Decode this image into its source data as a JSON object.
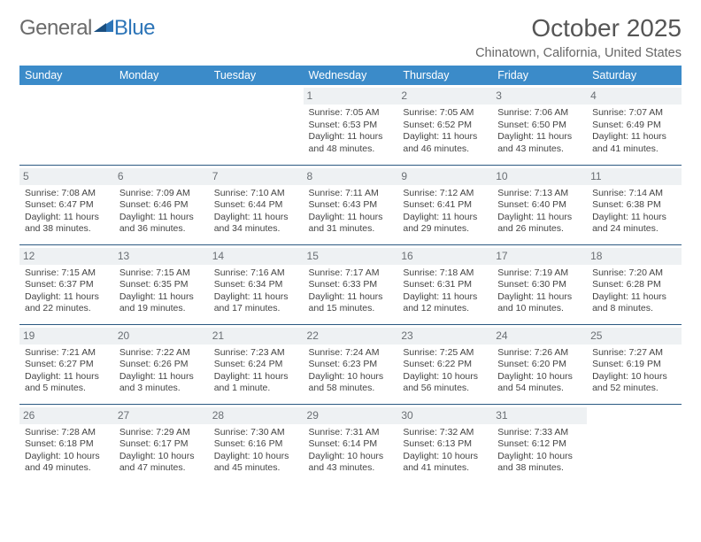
{
  "logo": {
    "text1": "General",
    "text2": "Blue"
  },
  "title": "October 2025",
  "subtitle": "Chinatown, California, United States",
  "colors": {
    "header_bg": "#3b8bc9",
    "header_fg": "#ffffff",
    "row_border": "#2c5a82",
    "daynum_bg": "#eef1f3",
    "daynum_fg": "#6a6f74",
    "logo_gray": "#6b6b6b",
    "logo_blue": "#2d75b8",
    "title_color": "#555555",
    "subtitle_color": "#666666",
    "body_text": "#444444",
    "page_bg": "#ffffff"
  },
  "typography": {
    "title_size_pt": 21,
    "subtitle_size_pt": 11,
    "header_size_pt": 9.5,
    "cell_size_pt": 8,
    "daynum_size_pt": 9
  },
  "dayHeaders": [
    "Sunday",
    "Monday",
    "Tuesday",
    "Wednesday",
    "Thursday",
    "Friday",
    "Saturday"
  ],
  "weeks": [
    [
      {
        "n": "",
        "lines": []
      },
      {
        "n": "",
        "lines": []
      },
      {
        "n": "",
        "lines": []
      },
      {
        "n": "1",
        "lines": [
          "Sunrise: 7:05 AM",
          "Sunset: 6:53 PM",
          "Daylight: 11 hours",
          "and 48 minutes."
        ]
      },
      {
        "n": "2",
        "lines": [
          "Sunrise: 7:05 AM",
          "Sunset: 6:52 PM",
          "Daylight: 11 hours",
          "and 46 minutes."
        ]
      },
      {
        "n": "3",
        "lines": [
          "Sunrise: 7:06 AM",
          "Sunset: 6:50 PM",
          "Daylight: 11 hours",
          "and 43 minutes."
        ]
      },
      {
        "n": "4",
        "lines": [
          "Sunrise: 7:07 AM",
          "Sunset: 6:49 PM",
          "Daylight: 11 hours",
          "and 41 minutes."
        ]
      }
    ],
    [
      {
        "n": "5",
        "lines": [
          "Sunrise: 7:08 AM",
          "Sunset: 6:47 PM",
          "Daylight: 11 hours",
          "and 38 minutes."
        ]
      },
      {
        "n": "6",
        "lines": [
          "Sunrise: 7:09 AM",
          "Sunset: 6:46 PM",
          "Daylight: 11 hours",
          "and 36 minutes."
        ]
      },
      {
        "n": "7",
        "lines": [
          "Sunrise: 7:10 AM",
          "Sunset: 6:44 PM",
          "Daylight: 11 hours",
          "and 34 minutes."
        ]
      },
      {
        "n": "8",
        "lines": [
          "Sunrise: 7:11 AM",
          "Sunset: 6:43 PM",
          "Daylight: 11 hours",
          "and 31 minutes."
        ]
      },
      {
        "n": "9",
        "lines": [
          "Sunrise: 7:12 AM",
          "Sunset: 6:41 PM",
          "Daylight: 11 hours",
          "and 29 minutes."
        ]
      },
      {
        "n": "10",
        "lines": [
          "Sunrise: 7:13 AM",
          "Sunset: 6:40 PM",
          "Daylight: 11 hours",
          "and 26 minutes."
        ]
      },
      {
        "n": "11",
        "lines": [
          "Sunrise: 7:14 AM",
          "Sunset: 6:38 PM",
          "Daylight: 11 hours",
          "and 24 minutes."
        ]
      }
    ],
    [
      {
        "n": "12",
        "lines": [
          "Sunrise: 7:15 AM",
          "Sunset: 6:37 PM",
          "Daylight: 11 hours",
          "and 22 minutes."
        ]
      },
      {
        "n": "13",
        "lines": [
          "Sunrise: 7:15 AM",
          "Sunset: 6:35 PM",
          "Daylight: 11 hours",
          "and 19 minutes."
        ]
      },
      {
        "n": "14",
        "lines": [
          "Sunrise: 7:16 AM",
          "Sunset: 6:34 PM",
          "Daylight: 11 hours",
          "and 17 minutes."
        ]
      },
      {
        "n": "15",
        "lines": [
          "Sunrise: 7:17 AM",
          "Sunset: 6:33 PM",
          "Daylight: 11 hours",
          "and 15 minutes."
        ]
      },
      {
        "n": "16",
        "lines": [
          "Sunrise: 7:18 AM",
          "Sunset: 6:31 PM",
          "Daylight: 11 hours",
          "and 12 minutes."
        ]
      },
      {
        "n": "17",
        "lines": [
          "Sunrise: 7:19 AM",
          "Sunset: 6:30 PM",
          "Daylight: 11 hours",
          "and 10 minutes."
        ]
      },
      {
        "n": "18",
        "lines": [
          "Sunrise: 7:20 AM",
          "Sunset: 6:28 PM",
          "Daylight: 11 hours",
          "and 8 minutes."
        ]
      }
    ],
    [
      {
        "n": "19",
        "lines": [
          "Sunrise: 7:21 AM",
          "Sunset: 6:27 PM",
          "Daylight: 11 hours",
          "and 5 minutes."
        ]
      },
      {
        "n": "20",
        "lines": [
          "Sunrise: 7:22 AM",
          "Sunset: 6:26 PM",
          "Daylight: 11 hours",
          "and 3 minutes."
        ]
      },
      {
        "n": "21",
        "lines": [
          "Sunrise: 7:23 AM",
          "Sunset: 6:24 PM",
          "Daylight: 11 hours",
          "and 1 minute."
        ]
      },
      {
        "n": "22",
        "lines": [
          "Sunrise: 7:24 AM",
          "Sunset: 6:23 PM",
          "Daylight: 10 hours",
          "and 58 minutes."
        ]
      },
      {
        "n": "23",
        "lines": [
          "Sunrise: 7:25 AM",
          "Sunset: 6:22 PM",
          "Daylight: 10 hours",
          "and 56 minutes."
        ]
      },
      {
        "n": "24",
        "lines": [
          "Sunrise: 7:26 AM",
          "Sunset: 6:20 PM",
          "Daylight: 10 hours",
          "and 54 minutes."
        ]
      },
      {
        "n": "25",
        "lines": [
          "Sunrise: 7:27 AM",
          "Sunset: 6:19 PM",
          "Daylight: 10 hours",
          "and 52 minutes."
        ]
      }
    ],
    [
      {
        "n": "26",
        "lines": [
          "Sunrise: 7:28 AM",
          "Sunset: 6:18 PM",
          "Daylight: 10 hours",
          "and 49 minutes."
        ]
      },
      {
        "n": "27",
        "lines": [
          "Sunrise: 7:29 AM",
          "Sunset: 6:17 PM",
          "Daylight: 10 hours",
          "and 47 minutes."
        ]
      },
      {
        "n": "28",
        "lines": [
          "Sunrise: 7:30 AM",
          "Sunset: 6:16 PM",
          "Daylight: 10 hours",
          "and 45 minutes."
        ]
      },
      {
        "n": "29",
        "lines": [
          "Sunrise: 7:31 AM",
          "Sunset: 6:14 PM",
          "Daylight: 10 hours",
          "and 43 minutes."
        ]
      },
      {
        "n": "30",
        "lines": [
          "Sunrise: 7:32 AM",
          "Sunset: 6:13 PM",
          "Daylight: 10 hours",
          "and 41 minutes."
        ]
      },
      {
        "n": "31",
        "lines": [
          "Sunrise: 7:33 AM",
          "Sunset: 6:12 PM",
          "Daylight: 10 hours",
          "and 38 minutes."
        ]
      },
      {
        "n": "",
        "lines": []
      }
    ]
  ]
}
